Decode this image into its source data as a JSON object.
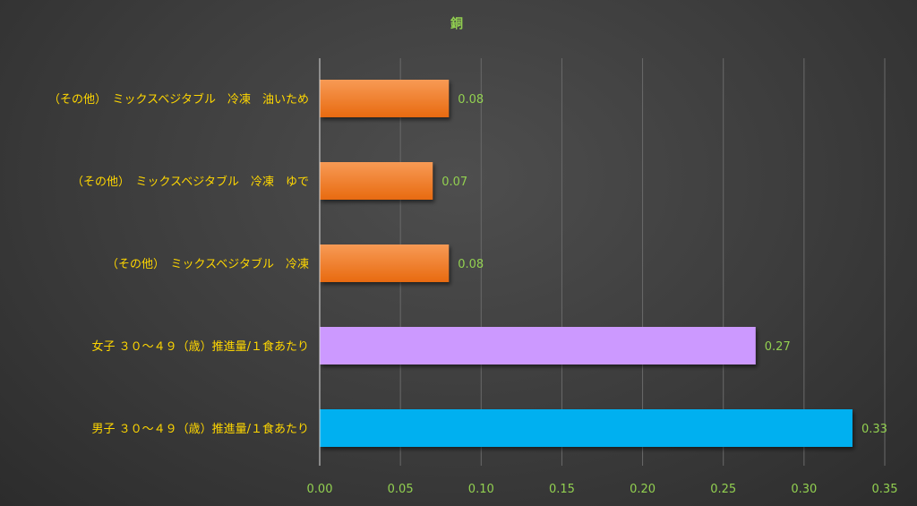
{
  "chart_data": {
    "type": "bar",
    "orientation": "horizontal",
    "title": "銅",
    "categories": [
      "（その他）　ミックスベジタブル　冷凍　油いため",
      "（その他）　ミックスベジタブル　冷凍　ゆで",
      "（その他）　ミックスベジタブル　冷凍",
      "女子 ３０～４９（歳）推進量/１食あたり",
      "男子 ３０～４９（歳）推進量/１食あたり"
    ],
    "values": [
      0.08,
      0.07,
      0.08,
      0.27,
      0.33
    ],
    "data_labels": [
      "0.08",
      "0.07",
      "0.08",
      "0.27",
      "0.33"
    ],
    "bar_colors": [
      "#f07f2a",
      "#f07f2a",
      "#f07f2a",
      "#cc99ff",
      "#00b0f0"
    ],
    "xlim": [
      0,
      0.35
    ],
    "x_ticks": [
      "0.00",
      "0.05",
      "0.10",
      "0.15",
      "0.20",
      "0.25",
      "0.30",
      "0.35"
    ],
    "grid": true,
    "legend": "none",
    "xlabel": "",
    "ylabel": ""
  }
}
